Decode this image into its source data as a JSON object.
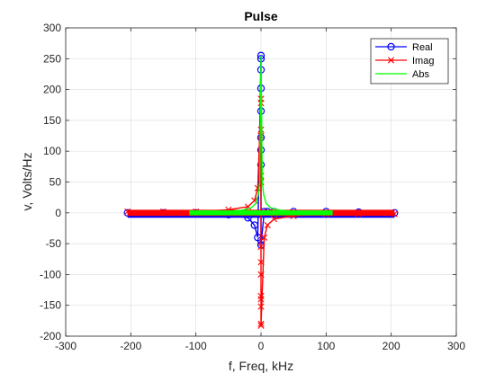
{
  "chart_data": {
    "type": "scatter",
    "title": "Pulse",
    "xlabel": "f, Freq, kHz",
    "ylabel": "v, Volts/Hz",
    "xlim": [
      -300,
      300
    ],
    "ylim": [
      -200,
      300
    ],
    "xticks": [
      "-300",
      "-200",
      "-100",
      "0",
      "100",
      "200",
      "300"
    ],
    "yticks": [
      "-200",
      "-150",
      "-100",
      "-50",
      "0",
      "50",
      "100",
      "150",
      "200",
      "250",
      "300"
    ],
    "grid": true,
    "legend_position": "top-right",
    "series": [
      {
        "name": "Real",
        "marker": "circle",
        "color": "#0000ff",
        "band_x": [
          -205,
          205
        ],
        "band_y": [
          -8,
          4
        ],
        "x": [
          -205,
          -150,
          -100,
          -50,
          -20,
          -10,
          -5,
          0,
          0,
          0,
          0,
          0,
          0,
          0,
          0,
          0,
          0,
          5,
          10,
          20,
          50,
          100,
          150,
          205
        ],
        "y": [
          0,
          0,
          0,
          -3,
          -8,
          -20,
          -40,
          255,
          250,
          232,
          202,
          165,
          122,
          102,
          78,
          -45,
          -52,
          2,
          2,
          2,
          2,
          2,
          1,
          0
        ]
      },
      {
        "name": "Imag",
        "marker": "x",
        "color": "#ff0000",
        "band_x": [
          -205,
          205
        ],
        "band_y": [
          -5,
          5
        ],
        "x": [
          -205,
          -150,
          -100,
          -50,
          -20,
          -10,
          -5,
          0,
          0,
          0,
          0,
          0,
          0,
          0,
          0,
          0,
          0,
          0,
          0,
          0,
          0,
          5,
          10,
          20,
          50,
          100,
          150,
          205
        ],
        "y": [
          2,
          2,
          2,
          5,
          10,
          20,
          40,
          185,
          178,
          135,
          125,
          60,
          50,
          -55,
          -80,
          -100,
          -135,
          -140,
          -152,
          -180,
          -183,
          -40,
          -20,
          -10,
          -5,
          -2,
          -2,
          -2
        ]
      },
      {
        "name": "Abs",
        "marker": "none",
        "color": "#00ff00",
        "band_x": [
          -110,
          110
        ],
        "band_y": [
          -4,
          4
        ],
        "x": [
          -110,
          -60,
          -30,
          -15,
          -8,
          -4,
          -2,
          0,
          2,
          4,
          8,
          15,
          30,
          60,
          110
        ],
        "y": [
          1,
          2,
          4,
          8,
          15,
          30,
          50,
          255,
          50,
          30,
          15,
          8,
          4,
          2,
          1
        ]
      }
    ]
  }
}
